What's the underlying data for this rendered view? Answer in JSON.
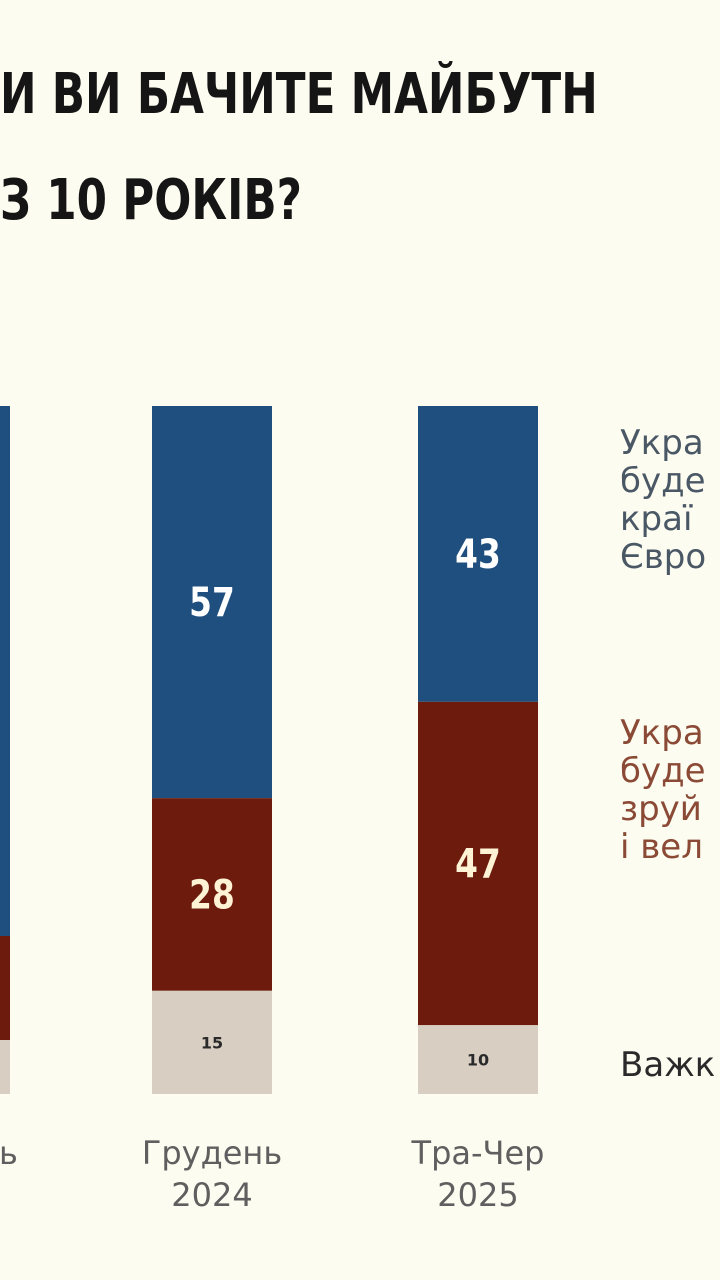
{
  "title_lines": [
    "и ви бачите майбутн",
    "з 10 років?"
  ],
  "colors": {
    "background": "#fdfcf1",
    "europe": "#1e4f7f",
    "ruined": "#6d1b0d",
    "hard": "#d8cec2",
    "legend_europe": "#4a5866",
    "legend_ruined": "#8a4a35",
    "legend_hard": "#2a2a2a"
  },
  "chart_data": {
    "type": "bar",
    "stacked": true,
    "categories": [
      {
        "line1": "нь",
        "line2": ""
      },
      {
        "line1": "Грудень",
        "line2": "2024"
      },
      {
        "line1": "Тра-Чер",
        "line2": "2025"
      }
    ],
    "series": [
      {
        "key": "europe",
        "values": [
          null,
          57,
          43
        ]
      },
      {
        "key": "ruined",
        "values": [
          null,
          28,
          47
        ]
      },
      {
        "key": "hard",
        "values": [
          null,
          15,
          10
        ]
      }
    ],
    "legend": [
      {
        "key": "europe",
        "lines": [
          "Укра",
          "буде",
          "краї",
          "Євро"
        ]
      },
      {
        "key": "ruined",
        "lines": [
          "Укра",
          "буде",
          "зруй",
          "і вел"
        ]
      },
      {
        "key": "hard",
        "lines": [
          "Важк"
        ]
      }
    ],
    "ylim": [
      0,
      100
    ]
  }
}
